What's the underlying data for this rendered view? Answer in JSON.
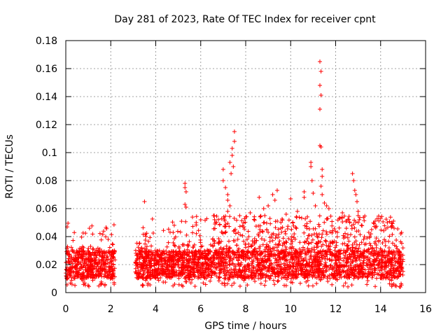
{
  "chart_data": {
    "type": "scatter",
    "title": "Day 281 of 2023, Rate Of TEC Index for receiver cpnt",
    "xlabel": "GPS time / hours",
    "ylabel": "ROTI / TECUs",
    "xlim": [
      0,
      16
    ],
    "ylim": [
      0,
      0.18
    ],
    "x_ticks": [
      "0",
      "2",
      "4",
      "6",
      "8",
      "10",
      "12",
      "14",
      "16"
    ],
    "y_ticks": [
      "0",
      "0.02",
      "0.04",
      "0.06",
      "0.08",
      "0.1",
      "0.12",
      "0.14",
      "0.16",
      "0.18"
    ],
    "grid": true,
    "marker": "+",
    "series_color": "#ff0000",
    "data_gap_hours": [
      2.2,
      3.1
    ],
    "dense_band": {
      "description_note": "thousands of points, baseline ~0.01-0.03 TECU",
      "segments": [
        {
          "x_start": 0.0,
          "x_end": 2.2,
          "y_min": 0.004,
          "y_max": 0.04
        },
        {
          "x_start": 3.1,
          "x_end": 15.0,
          "y_min": 0.004,
          "y_max": 0.045
        }
      ]
    },
    "peak_points": [
      {
        "x": 3.5,
        "y": 0.065
      },
      {
        "x": 5.3,
        "y": 0.078
      },
      {
        "x": 5.3,
        "y": 0.075
      },
      {
        "x": 5.35,
        "y": 0.072
      },
      {
        "x": 5.3,
        "y": 0.063
      },
      {
        "x": 5.35,
        "y": 0.061
      },
      {
        "x": 7.0,
        "y": 0.088
      },
      {
        "x": 7.0,
        "y": 0.08
      },
      {
        "x": 7.1,
        "y": 0.075
      },
      {
        "x": 7.2,
        "y": 0.07
      },
      {
        "x": 7.2,
        "y": 0.066
      },
      {
        "x": 7.3,
        "y": 0.062
      },
      {
        "x": 7.3,
        "y": 0.093
      },
      {
        "x": 7.4,
        "y": 0.098
      },
      {
        "x": 7.4,
        "y": 0.103
      },
      {
        "x": 7.5,
        "y": 0.108
      },
      {
        "x": 7.5,
        "y": 0.115
      },
      {
        "x": 7.45,
        "y": 0.09
      },
      {
        "x": 7.35,
        "y": 0.085
      },
      {
        "x": 7.2,
        "y": 0.058
      },
      {
        "x": 8.6,
        "y": 0.068
      },
      {
        "x": 8.8,
        "y": 0.06
      },
      {
        "x": 9.0,
        "y": 0.062
      },
      {
        "x": 9.2,
        "y": 0.07
      },
      {
        "x": 9.4,
        "y": 0.073
      },
      {
        "x": 9.3,
        "y": 0.066
      },
      {
        "x": 10.0,
        "y": 0.067
      },
      {
        "x": 10.6,
        "y": 0.072
      },
      {
        "x": 10.6,
        "y": 0.068
      },
      {
        "x": 10.9,
        "y": 0.093
      },
      {
        "x": 10.9,
        "y": 0.09
      },
      {
        "x": 10.95,
        "y": 0.08
      },
      {
        "x": 11.0,
        "y": 0.071
      },
      {
        "x": 11.1,
        "y": 0.062
      },
      {
        "x": 11.3,
        "y": 0.165
      },
      {
        "x": 11.35,
        "y": 0.158
      },
      {
        "x": 11.3,
        "y": 0.148
      },
      {
        "x": 11.35,
        "y": 0.141
      },
      {
        "x": 11.3,
        "y": 0.131
      },
      {
        "x": 11.3,
        "y": 0.105
      },
      {
        "x": 11.35,
        "y": 0.104
      },
      {
        "x": 11.4,
        "y": 0.088
      },
      {
        "x": 11.4,
        "y": 0.083
      },
      {
        "x": 11.35,
        "y": 0.076
      },
      {
        "x": 11.4,
        "y": 0.07
      },
      {
        "x": 11.5,
        "y": 0.064
      },
      {
        "x": 11.6,
        "y": 0.062
      },
      {
        "x": 11.7,
        "y": 0.06
      },
      {
        "x": 12.3,
        "y": 0.057
      },
      {
        "x": 12.75,
        "y": 0.085
      },
      {
        "x": 12.8,
        "y": 0.08
      },
      {
        "x": 12.85,
        "y": 0.073
      },
      {
        "x": 12.9,
        "y": 0.07
      },
      {
        "x": 12.95,
        "y": 0.065
      },
      {
        "x": 13.0,
        "y": 0.058
      },
      {
        "x": 13.0,
        "y": 0.055
      },
      {
        "x": 13.6,
        "y": 0.045
      },
      {
        "x": 14.0,
        "y": 0.053
      },
      {
        "x": 14.3,
        "y": 0.05
      },
      {
        "x": 14.6,
        "y": 0.046
      },
      {
        "x": 14.9,
        "y": 0.042
      },
      {
        "x": 6.6,
        "y": 0.055
      },
      {
        "x": 8.2,
        "y": 0.057
      },
      {
        "x": 9.8,
        "y": 0.056
      },
      {
        "x": 10.3,
        "y": 0.058
      },
      {
        "x": 6.0,
        "y": 0.052
      },
      {
        "x": 5.8,
        "y": 0.05
      }
    ]
  }
}
